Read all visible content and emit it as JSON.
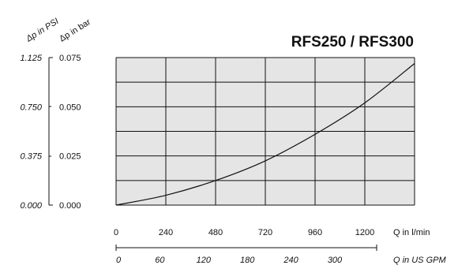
{
  "chart_data": {
    "type": "line",
    "title": "RFS250 / RFS300",
    "x_label": "Q in l/min",
    "x2_label": "Q in US GPM",
    "y_label": "Δp in bar",
    "y2_label": "Δp in PSI",
    "x_ticks": [
      "0",
      "240",
      "480",
      "720",
      "960",
      "1200"
    ],
    "x2_ticks": [
      "0",
      "60",
      "120",
      "180",
      "240",
      "300"
    ],
    "y_ticks": [
      "0.000",
      "0.025",
      "0.050",
      "0.075"
    ],
    "y2_ticks": [
      "0.000",
      "0.375",
      "0.750",
      "1.125"
    ],
    "xlim": [
      0,
      1440
    ],
    "ylim": [
      0,
      0.075
    ],
    "grid": true,
    "plot_background": "#e5e5e5",
    "series": [
      {
        "x": [
          0,
          240,
          480,
          720,
          960,
          1200,
          1440
        ],
        "y": [
          0,
          0.005,
          0.0125,
          0.0225,
          0.036,
          0.052,
          0.072
        ]
      }
    ]
  }
}
